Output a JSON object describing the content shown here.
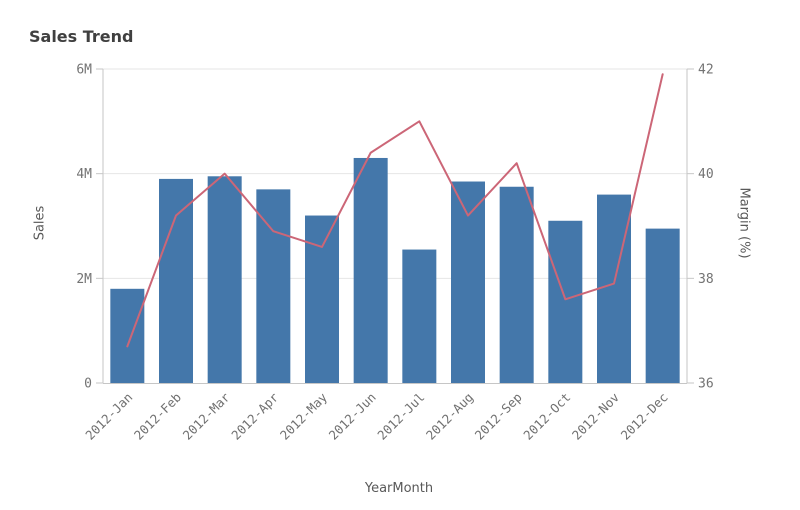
{
  "chart_data": {
    "type": "combo",
    "title": "Sales Trend",
    "xlabel": "YearMonth",
    "grid": true,
    "legend": false,
    "categories": [
      "2012-Jan",
      "2012-Feb",
      "2012-Mar",
      "2012-Apr",
      "2012-May",
      "2012-Jun",
      "2012-Jul",
      "2012-Aug",
      "2012-Sep",
      "2012-Oct",
      "2012-Nov",
      "2012-Dec"
    ],
    "series": [
      {
        "name": "Sales",
        "type": "bar",
        "axis": "left",
        "color": "#4477aa",
        "values": [
          1800000,
          3900000,
          3950000,
          3700000,
          3200000,
          4300000,
          2550000,
          3850000,
          3750000,
          3100000,
          3600000,
          2950000
        ]
      },
      {
        "name": "Margin (%)",
        "type": "line",
        "axis": "right",
        "color": "#cc6677",
        "values": [
          36.7,
          39.2,
          40.0,
          38.9,
          38.6,
          40.4,
          41.0,
          39.2,
          40.2,
          37.6,
          37.9,
          41.9
        ]
      }
    ],
    "left_axis": {
      "label": "Sales",
      "min": 0,
      "max": 6000000,
      "ticks": [
        {
          "value": 0,
          "label": "0"
        },
        {
          "value": 2000000,
          "label": "2M"
        },
        {
          "value": 4000000,
          "label": "4M"
        },
        {
          "value": 6000000,
          "label": "6M"
        }
      ]
    },
    "right_axis": {
      "label": "Margin (%)",
      "min": 36,
      "max": 42,
      "ticks": [
        {
          "value": 36,
          "label": "36"
        },
        {
          "value": 38,
          "label": "38"
        },
        {
          "value": 40,
          "label": "40"
        },
        {
          "value": 42,
          "label": "42"
        }
      ]
    },
    "style": {
      "gridline_color": "#e6e6e6",
      "axisline_color": "#c6c6c6",
      "bar_color": "#4477aa",
      "line_color": "#cc6677",
      "title_color": "#404040",
      "label_color": "#737373"
    }
  }
}
